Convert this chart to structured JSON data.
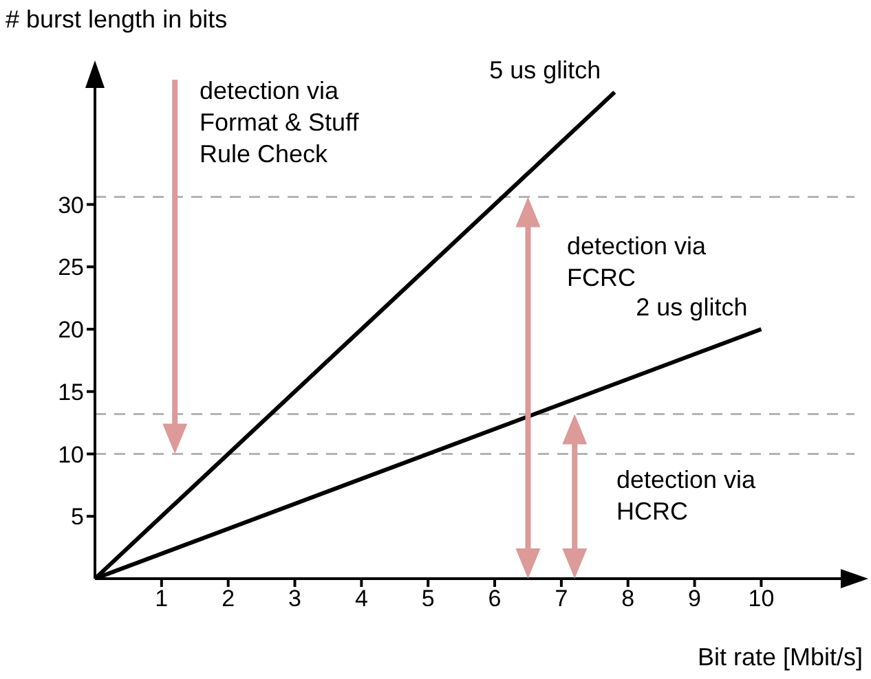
{
  "chart_data": {
    "type": "line",
    "xlabel": "Bit rate [Mbit/s]",
    "ylabel": "# burst length in bits",
    "series": [
      {
        "name": "5 us glitch",
        "color": "#000000",
        "x": [
          0,
          7.8
        ],
        "values": [
          0,
          39
        ]
      },
      {
        "name": "2 us glitch",
        "color": "#000000",
        "x": [
          0,
          10
        ],
        "values": [
          0,
          20
        ]
      }
    ],
    "xlim": [
      0,
      11.4
    ],
    "ylim": [
      0,
      40
    ],
    "xticks": [
      1,
      2,
      3,
      4,
      5,
      6,
      7,
      8,
      9,
      10
    ],
    "yticks": [
      5,
      10,
      15,
      20,
      25,
      30
    ],
    "ref_lines": [
      {
        "axis": "y",
        "value": 30.6,
        "color": "#b4b4b4",
        "line_style": "dashed"
      },
      {
        "axis": "y",
        "value": 13.2,
        "color": "#b4b4b4",
        "line_style": "dashed"
      },
      {
        "axis": "y",
        "value": 10,
        "color": "#b4b4b4",
        "line_style": "dashed"
      }
    ],
    "annotations": [
      "detection via\nFormat & Stuff\nRule Check",
      "detection via\nFCRC",
      "detection via\nHCRC"
    ],
    "grid": false,
    "legend": false
  }
}
